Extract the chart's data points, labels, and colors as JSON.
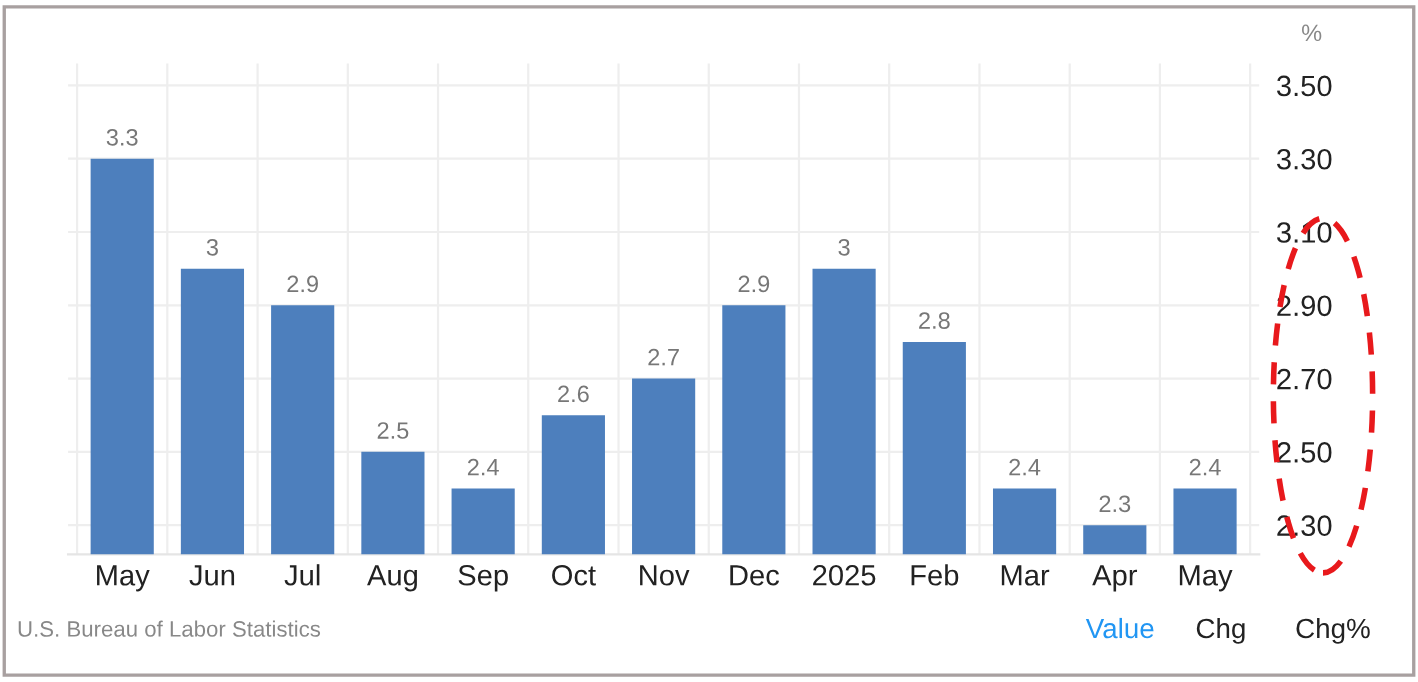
{
  "chart_data": {
    "type": "bar",
    "ylabel": "%",
    "categories": [
      "May",
      "Jun",
      "Jul",
      "Aug",
      "Sep",
      "Oct",
      "Nov",
      "Dec",
      "2025",
      "Feb",
      "Mar",
      "Apr",
      "May"
    ],
    "values": [
      3.3,
      3,
      2.9,
      2.5,
      2.4,
      2.6,
      2.7,
      2.9,
      3,
      2.8,
      2.4,
      2.3,
      2.4
    ],
    "color": "#4d7fbd",
    "ylim": [
      2.22,
      3.56
    ],
    "yticks": [
      {
        "value": 2.3,
        "label": "2.30"
      },
      {
        "value": 2.5,
        "label": "2.50"
      },
      {
        "value": 2.7,
        "label": "2.70"
      },
      {
        "value": 2.9,
        "label": "2.90"
      },
      {
        "value": 3.1,
        "label": "3.10"
      },
      {
        "value": 3.3,
        "label": "3.30"
      },
      {
        "value": 3.5,
        "label": "3.50"
      }
    ],
    "grid": true,
    "data_labels": true,
    "annotations": [
      "U.S. Bureau of Labor Statistics",
      "Value",
      "Chg",
      "Chg%"
    ]
  }
}
